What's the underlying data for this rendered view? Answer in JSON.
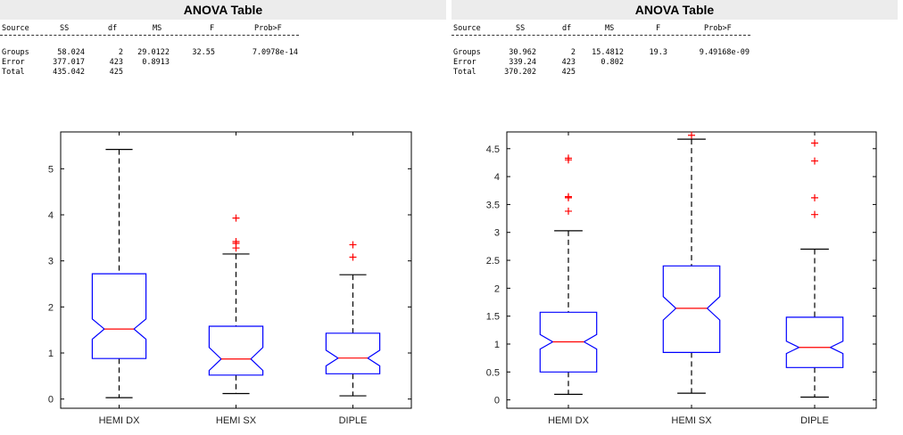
{
  "anova_tables": [
    {
      "title": "ANOVA Table",
      "columns": [
        "Source",
        "SS",
        "df",
        "MS",
        "F",
        "Prob>F"
      ],
      "rows": [
        [
          "Groups",
          "58.024",
          "2",
          "29.0122",
          "32.55",
          "7.0978e-14"
        ],
        [
          "Error",
          "377.017",
          "423",
          "0.8913",
          "",
          ""
        ],
        [
          "Total",
          "435.042",
          "425",
          "",
          "",
          ""
        ]
      ]
    },
    {
      "title": "ANOVA Table",
      "columns": [
        "Source",
        "SS",
        "df",
        "MS",
        "F",
        "Prob>F"
      ],
      "rows": [
        [
          "Groups",
          "30.962",
          "2",
          "15.4812",
          "19.3",
          "9.49168e-09"
        ],
        [
          "Error",
          "339.24",
          "423",
          "0.802",
          "",
          ""
        ],
        [
          "Total",
          "370.202",
          "425",
          "",
          "",
          ""
        ]
      ]
    }
  ],
  "chart_data": [
    {
      "type": "boxplot",
      "notched": true,
      "categories": [
        "HEMI DX",
        "HEMI SX",
        "DIPLE"
      ],
      "ylim": [
        -0.2,
        5.8
      ],
      "yticks": [
        0,
        1,
        2,
        3,
        4,
        5
      ],
      "boxes": [
        {
          "lower_whisker": 0.03,
          "q1": 0.88,
          "median": 1.52,
          "q3": 2.72,
          "upper_whisker": 5.42,
          "notch_low": 1.3,
          "notch_high": 1.74,
          "outliers": []
        },
        {
          "lower_whisker": 0.12,
          "q1": 0.52,
          "median": 0.87,
          "q3": 1.58,
          "upper_whisker": 3.15,
          "notch_low": 0.62,
          "notch_high": 1.12,
          "outliers": [
            3.28,
            3.38,
            3.42,
            3.93
          ]
        },
        {
          "lower_whisker": 0.07,
          "q1": 0.55,
          "median": 0.89,
          "q3": 1.43,
          "upper_whisker": 2.7,
          "notch_low": 0.72,
          "notch_high": 1.06,
          "outliers": [
            3.08,
            3.35
          ]
        }
      ],
      "colors": {
        "box": "#0000ff",
        "median": "#ff0000",
        "whisker": "#000000",
        "outlier": "#ff0000"
      }
    },
    {
      "type": "boxplot",
      "notched": true,
      "categories": [
        "HEMI DX",
        "HEMI SX",
        "DIPLE"
      ],
      "ylim": [
        -0.15,
        4.8
      ],
      "yticks": [
        0,
        0.5,
        1,
        1.5,
        2,
        2.5,
        3,
        3.5,
        4,
        4.5
      ],
      "boxes": [
        {
          "lower_whisker": 0.1,
          "q1": 0.5,
          "median": 1.04,
          "q3": 1.57,
          "upper_whisker": 3.03,
          "notch_low": 0.91,
          "notch_high": 1.17,
          "outliers": [
            3.38,
            3.62,
            3.64,
            4.3,
            4.33
          ]
        },
        {
          "lower_whisker": 0.12,
          "q1": 0.85,
          "median": 1.64,
          "q3": 2.4,
          "upper_whisker": 4.67,
          "notch_low": 1.43,
          "notch_high": 1.85,
          "outliers": [
            4.74
          ]
        },
        {
          "lower_whisker": 0.05,
          "q1": 0.58,
          "median": 0.94,
          "q3": 1.48,
          "upper_whisker": 2.7,
          "notch_low": 0.83,
          "notch_high": 1.05,
          "outliers": [
            3.32,
            3.62,
            4.28,
            4.6
          ]
        }
      ],
      "colors": {
        "box": "#0000ff",
        "median": "#ff0000",
        "whisker": "#000000",
        "outlier": "#ff0000"
      }
    }
  ]
}
